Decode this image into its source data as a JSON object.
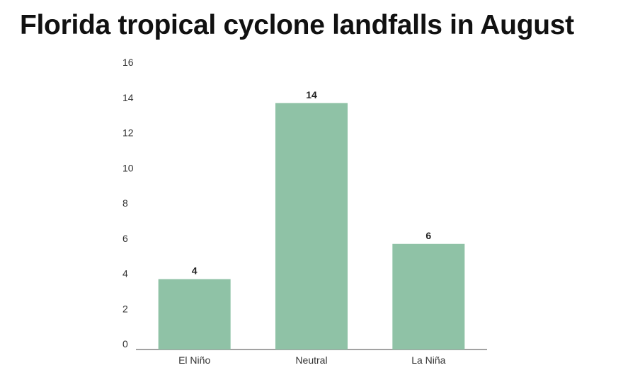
{
  "chart_data": {
    "type": "bar",
    "title": "Florida tropical cyclone landfalls in August",
    "categories": [
      "El Niño",
      "Neutral",
      "La Niña"
    ],
    "values": [
      4,
      14,
      6
    ],
    "data_labels": [
      "4",
      "14",
      "6"
    ],
    "yticks": [
      "0",
      "2",
      "4",
      "6",
      "8",
      "10",
      "12",
      "14",
      "16"
    ],
    "ylim": [
      0,
      16
    ],
    "xlabel": "",
    "ylabel": "",
    "grid": false,
    "bar_color": "#8fc2a6"
  }
}
